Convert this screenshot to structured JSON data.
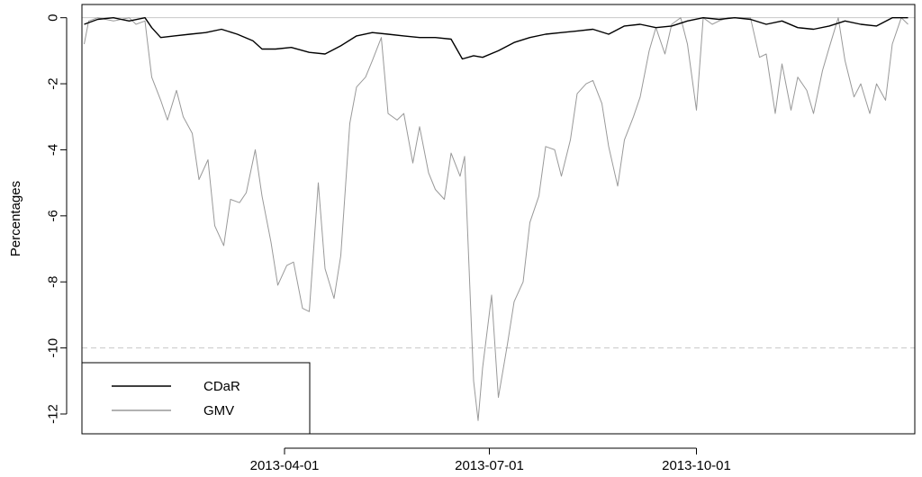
{
  "chart_data": {
    "type": "line",
    "title": "",
    "xlabel": "",
    "ylabel": "Percentages",
    "ylim": [
      -12.6,
      0.4
    ],
    "y_ticks": [
      0,
      -2,
      -4,
      -6,
      -8,
      -10,
      -12
    ],
    "x_ticks": [
      "2013-04-01",
      "2013-07-01",
      "2013-10-01"
    ],
    "x_range": [
      "2013-01-01",
      "2014-01-06"
    ],
    "grid": false,
    "legend_position": "bottom-left",
    "reference_lines": [
      {
        "y": 0,
        "style": "solid",
        "color": "#c8c8c8"
      },
      {
        "y": -10,
        "style": "dashed",
        "color": "#c8c8c8"
      }
    ],
    "series": [
      {
        "name": "CDaR",
        "color": "#000000",
        "x": [
          "2013-01-02",
          "2013-01-08",
          "2013-01-15",
          "2013-01-22",
          "2013-01-29",
          "2013-02-01",
          "2013-02-05",
          "2013-02-11",
          "2013-02-18",
          "2013-02-25",
          "2013-03-04",
          "2013-03-11",
          "2013-03-18",
          "2013-03-22",
          "2013-03-28",
          "2013-04-04",
          "2013-04-12",
          "2013-04-19",
          "2013-04-26",
          "2013-05-03",
          "2013-05-10",
          "2013-05-17",
          "2013-05-24",
          "2013-05-31",
          "2013-06-07",
          "2013-06-14",
          "2013-06-19",
          "2013-06-24",
          "2013-06-28",
          "2013-07-05",
          "2013-07-12",
          "2013-07-19",
          "2013-07-26",
          "2013-08-02",
          "2013-08-09",
          "2013-08-16",
          "2013-08-23",
          "2013-08-30",
          "2013-09-06",
          "2013-09-13",
          "2013-09-20",
          "2013-09-27",
          "2013-10-04",
          "2013-10-11",
          "2013-10-18",
          "2013-10-25",
          "2013-11-01",
          "2013-11-08",
          "2013-11-15",
          "2013-11-22",
          "2013-11-29",
          "2013-12-06",
          "2013-12-13",
          "2013-12-20",
          "2013-12-27",
          "2014-01-03"
        ],
        "values": [
          -0.2,
          -0.05,
          0,
          -0.1,
          0,
          -0.3,
          -0.6,
          -0.55,
          -0.5,
          -0.45,
          -0.35,
          -0.5,
          -0.7,
          -0.95,
          -0.95,
          -0.9,
          -1.05,
          -1.1,
          -0.85,
          -0.55,
          -0.45,
          -0.5,
          -0.55,
          -0.6,
          -0.6,
          -0.65,
          -1.25,
          -1.15,
          -1.2,
          -1.0,
          -0.75,
          -0.6,
          -0.5,
          -0.45,
          -0.4,
          -0.35,
          -0.5,
          -0.25,
          -0.2,
          -0.3,
          -0.25,
          -0.1,
          0,
          -0.05,
          0,
          -0.05,
          -0.2,
          -0.1,
          -0.3,
          -0.35,
          -0.25,
          -0.1,
          -0.2,
          -0.25,
          0,
          0
        ]
      },
      {
        "name": "GMV",
        "color": "#999999",
        "x": [
          "2013-01-02",
          "2013-01-04",
          "2013-01-08",
          "2013-01-15",
          "2013-01-22",
          "2013-01-25",
          "2013-01-29",
          "2013-02-01",
          "2013-02-05",
          "2013-02-08",
          "2013-02-12",
          "2013-02-15",
          "2013-02-19",
          "2013-02-22",
          "2013-02-26",
          "2013-03-01",
          "2013-03-05",
          "2013-03-08",
          "2013-03-12",
          "2013-03-15",
          "2013-03-19",
          "2013-03-22",
          "2013-03-26",
          "2013-03-29",
          "2013-04-02",
          "2013-04-05",
          "2013-04-09",
          "2013-04-12",
          "2013-04-16",
          "2013-04-19",
          "2013-04-23",
          "2013-04-26",
          "2013-04-30",
          "2013-05-03",
          "2013-05-07",
          "2013-05-10",
          "2013-05-14",
          "2013-05-17",
          "2013-05-21",
          "2013-05-24",
          "2013-05-28",
          "2013-05-31",
          "2013-06-04",
          "2013-06-07",
          "2013-06-11",
          "2013-06-14",
          "2013-06-18",
          "2013-06-20",
          "2013-06-24",
          "2013-06-26",
          "2013-06-28",
          "2013-07-02",
          "2013-07-05",
          "2013-07-09",
          "2013-07-12",
          "2013-07-16",
          "2013-07-19",
          "2013-07-23",
          "2013-07-26",
          "2013-07-30",
          "2013-08-02",
          "2013-08-06",
          "2013-08-09",
          "2013-08-13",
          "2013-08-16",
          "2013-08-20",
          "2013-08-23",
          "2013-08-27",
          "2013-08-30",
          "2013-09-03",
          "2013-09-06",
          "2013-09-10",
          "2013-09-13",
          "2013-09-17",
          "2013-09-20",
          "2013-09-24",
          "2013-09-27",
          "2013-10-01",
          "2013-10-04",
          "2013-10-08",
          "2013-10-11",
          "2013-10-15",
          "2013-10-18",
          "2013-10-22",
          "2013-10-25",
          "2013-10-29",
          "2013-11-01",
          "2013-11-05",
          "2013-11-08",
          "2013-11-12",
          "2013-11-15",
          "2013-11-19",
          "2013-11-22",
          "2013-11-26",
          "2013-11-29",
          "2013-12-03",
          "2013-12-06",
          "2013-12-10",
          "2013-12-13",
          "2013-12-17",
          "2013-12-20",
          "2013-12-24",
          "2013-12-27",
          "2013-12-31",
          "2014-01-03"
        ],
        "values": [
          -0.8,
          -0.1,
          0,
          -0.1,
          0,
          -0.2,
          -0.1,
          -1.8,
          -2.5,
          -3.1,
          -2.2,
          -3.0,
          -3.5,
          -4.9,
          -4.3,
          -6.3,
          -6.9,
          -5.5,
          -5.6,
          -5.3,
          -4.0,
          -5.4,
          -6.8,
          -8.1,
          -7.5,
          -7.4,
          -8.8,
          -8.9,
          -5.0,
          -7.6,
          -8.5,
          -7.2,
          -3.2,
          -2.1,
          -1.8,
          -1.3,
          -0.6,
          -2.9,
          -3.1,
          -2.9,
          -4.4,
          -3.3,
          -4.7,
          -5.2,
          -5.5,
          -4.1,
          -4.8,
          -4.2,
          -11.0,
          -12.2,
          -10.6,
          -8.4,
          -11.5,
          -9.9,
          -8.6,
          -8.0,
          -6.2,
          -5.4,
          -3.9,
          -4.0,
          -4.8,
          -3.7,
          -2.3,
          -2.0,
          -1.9,
          -2.6,
          -3.9,
          -5.1,
          -3.7,
          -3.0,
          -2.4,
          -1.0,
          -0.3,
          -1.1,
          -0.2,
          0,
          -0.8,
          -2.8,
          0,
          -0.2,
          -0.1,
          0,
          0,
          0,
          0,
          -1.2,
          -1.1,
          -2.9,
          -1.4,
          -2.8,
          -1.8,
          -2.2,
          -2.9,
          -1.6,
          -0.9,
          0,
          -1.3,
          -2.4,
          -2.0,
          -2.9,
          -2.0,
          -2.5,
          -0.8,
          0,
          -0.2
        ]
      }
    ]
  }
}
